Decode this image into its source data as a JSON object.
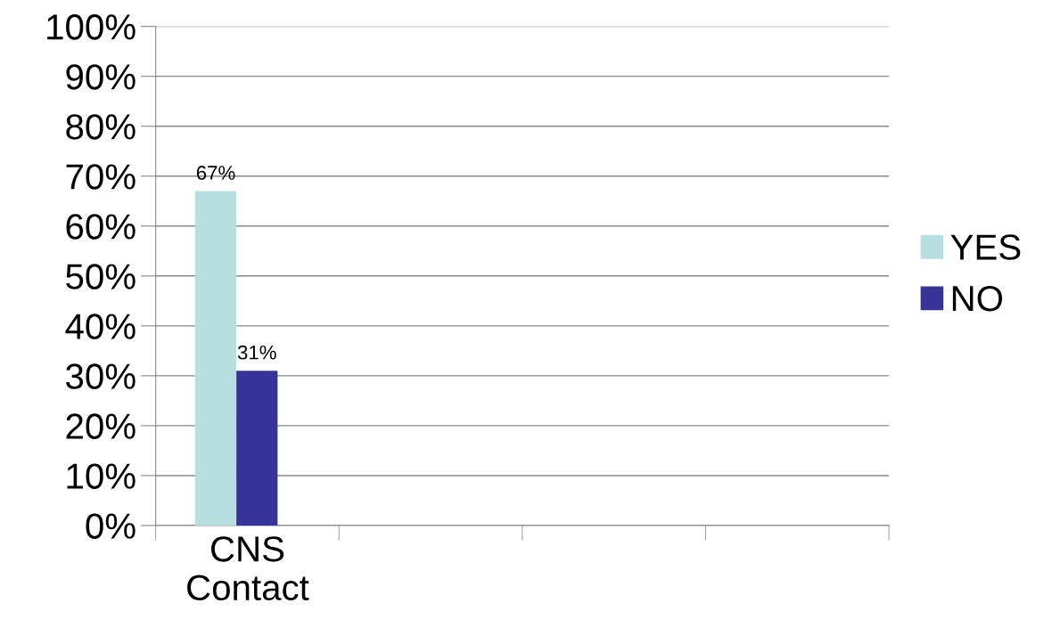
{
  "chart_data": {
    "type": "bar",
    "categories": [
      "CNS\nContact",
      null,
      null,
      null
    ],
    "series": [
      {
        "name": "YES",
        "color": "#b7dfe0",
        "values": [
          67,
          null,
          null,
          null
        ],
        "value_labels": [
          "67%",
          null,
          null,
          null
        ]
      },
      {
        "name": "NO",
        "color": "#373499",
        "values": [
          31,
          null,
          null,
          null
        ],
        "value_labels": [
          "31%",
          null,
          null,
          null
        ]
      }
    ],
    "ylim": [
      0,
      100
    ],
    "yticks": [
      {
        "value": 0,
        "label": "0%"
      },
      {
        "value": 10,
        "label": "10%"
      },
      {
        "value": 20,
        "label": "20%"
      },
      {
        "value": 30,
        "label": "30%"
      },
      {
        "value": 40,
        "label": "40%"
      },
      {
        "value": 50,
        "label": "50%"
      },
      {
        "value": 60,
        "label": "60%"
      },
      {
        "value": 70,
        "label": "70%"
      },
      {
        "value": 80,
        "label": "80%"
      },
      {
        "value": 90,
        "label": "90%"
      },
      {
        "value": 100,
        "label": "100%"
      }
    ],
    "grid": "y",
    "legend": "right"
  }
}
